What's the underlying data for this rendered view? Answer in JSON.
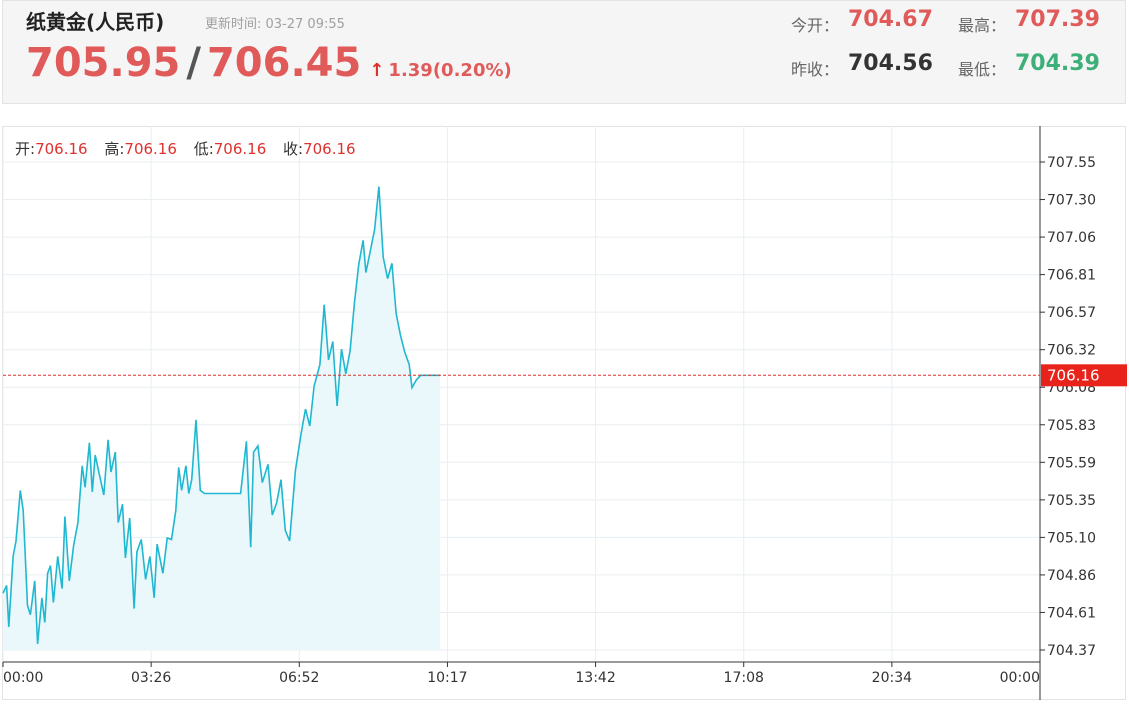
{
  "header": {
    "title": "纸黄金(人民币)",
    "updated": "更新时间: 03-27 09:55",
    "bid": "705.95",
    "slash": "/",
    "ask": "706.45",
    "change": "1.39(0.20%)",
    "up_icon": "arrow-up-icon",
    "stats": {
      "open_label": "今开：",
      "open_value": "704.67",
      "high_label": "最高：",
      "high_value": "707.39",
      "prev_close_label": "昨收：",
      "prev_close_value": "704.56",
      "low_label": "最低：",
      "low_value": "704.39"
    },
    "colors": {
      "up": "#e05a5a",
      "down": "#3db07a",
      "neutral": "#333333"
    }
  },
  "ohlc": {
    "open_label": "开:",
    "open_value": "706.16",
    "high_label": "高:",
    "high_value": "706.16",
    "low_label": "低:",
    "low_value": "706.16",
    "close_label": "收:",
    "close_value": "706.16"
  },
  "chart_data": {
    "type": "area",
    "y_ticks": [
      "707.55",
      "707.30",
      "707.06",
      "706.81",
      "706.57",
      "706.32",
      "706.08",
      "705.83",
      "705.59",
      "705.35",
      "705.10",
      "704.86",
      "704.61",
      "704.37"
    ],
    "x_ticks": [
      "00:00",
      "03:26",
      "06:52",
      "10:17",
      "13:42",
      "17:08",
      "20:34",
      "00:00"
    ],
    "ylim": [
      704.37,
      707.55
    ],
    "x_range_minutes": [
      0,
      1440
    ],
    "current_price": 706.16,
    "current_price_label": "706.16",
    "line_color": "#1fb8d0",
    "fill_color": "#eaf7fb",
    "current_line_color": "#e0302d",
    "grid": true,
    "series": [
      {
        "x": [
          0,
          5,
          8,
          14,
          18,
          24,
          28,
          34,
          38,
          44,
          48,
          54,
          58,
          62,
          66,
          70,
          76,
          82,
          86,
          92,
          98,
          104,
          110,
          114,
          120,
          124,
          128,
          134,
          140,
          146,
          150,
          156,
          160,
          166,
          170,
          176,
          182,
          186,
          192,
          198,
          204,
          210,
          214,
          222,
          228,
          234,
          240,
          244,
          248,
          254,
          258,
          262,
          268,
          274,
          280,
          286,
          292,
          298,
          304,
          312,
          318,
          324,
          330,
          338,
          344,
          348,
          354,
          360,
          368,
          374,
          380,
          386,
          392,
          398,
          406,
          414,
          420,
          426,
          432,
          440,
          446,
          452,
          458,
          464,
          470,
          476,
          482,
          488,
          494,
          500,
          504,
          510,
          516,
          522,
          528,
          534,
          540,
          546,
          552,
          558,
          564,
          568,
          574,
          580,
          586,
          592,
          598,
          603,
          607
        ],
        "y": [
          704.74,
          704.79,
          704.52,
          704.98,
          705.08,
          705.41,
          705.28,
          704.66,
          704.6,
          704.82,
          704.41,
          704.71,
          704.55,
          704.87,
          704.92,
          704.68,
          704.98,
          704.77,
          705.24,
          704.82,
          705.05,
          705.2,
          705.57,
          705.43,
          705.72,
          705.4,
          705.64,
          705.51,
          705.38,
          705.74,
          705.53,
          705.66,
          705.2,
          705.32,
          704.97,
          705.23,
          704.64,
          705.01,
          705.09,
          704.83,
          704.98,
          704.71,
          705.06,
          704.87,
          705.1,
          705.09,
          705.28,
          705.56,
          705.41,
          705.57,
          705.39,
          705.48,
          705.87,
          705.41,
          705.39,
          705.39,
          705.39,
          705.39,
          705.39,
          705.39,
          705.39,
          705.39,
          705.39,
          705.73,
          705.04,
          705.66,
          705.7,
          705.46,
          705.58,
          705.25,
          705.33,
          705.48,
          705.15,
          705.08,
          705.54,
          705.78,
          705.94,
          705.83,
          706.09,
          706.23,
          706.62,
          706.26,
          706.38,
          705.96,
          706.33,
          706.17,
          706.32,
          706.63,
          706.88,
          707.04,
          706.83,
          706.97,
          707.11,
          707.39,
          706.93,
          706.79,
          706.89,
          706.56,
          706.42,
          706.31,
          706.23,
          706.08,
          706.13,
          706.16,
          706.16,
          706.16,
          706.16,
          706.16,
          706.16
        ]
      }
    ]
  }
}
